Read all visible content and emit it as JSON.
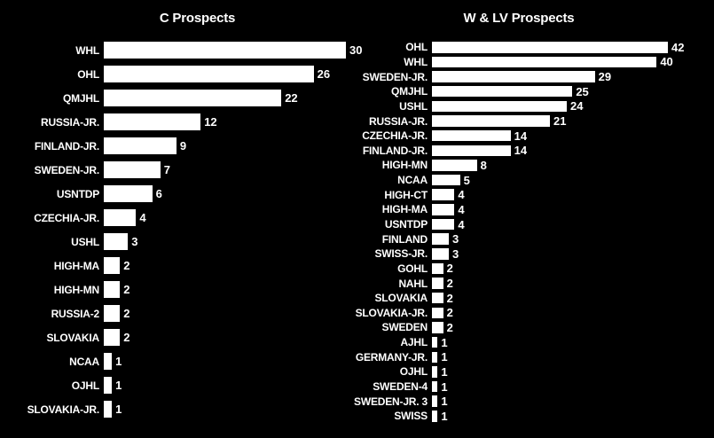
{
  "page": {
    "background_color": "#000000",
    "bar_color": "#ffffff",
    "text_color": "#ffffff"
  },
  "chart_data": [
    {
      "type": "bar",
      "orientation": "horizontal",
      "title": "C Prospects",
      "categories": [
        "WHL",
        "OHL",
        "QMJHL",
        "RUSSIA-JR.",
        "FINLAND-JR.",
        "SWEDEN-JR.",
        "USNTDP",
        "CZECHIA-JR.",
        "USHL",
        "HIGH-MA",
        "HIGH-MN",
        "RUSSIA-2",
        "SLOVAKIA",
        "NCAA",
        "OJHL",
        "SLOVAKIA-JR."
      ],
      "values": [
        30,
        26,
        22,
        12,
        9,
        7,
        6,
        4,
        3,
        2,
        2,
        2,
        2,
        1,
        1,
        1
      ],
      "xlim": [
        0,
        30
      ],
      "value_labels": true,
      "grid": false,
      "legend": false,
      "sort": "descending"
    },
    {
      "type": "bar",
      "orientation": "horizontal",
      "title": "W & LV Prospects",
      "categories": [
        "OHL",
        "WHL",
        "SWEDEN-JR.",
        "QMJHL",
        "USHL",
        "RUSSIA-JR.",
        "CZECHIA-JR.",
        "FINLAND-JR.",
        "HIGH-MN",
        "NCAA",
        "HIGH-CT",
        "HIGH-MA",
        "USNTDP",
        "FINLAND",
        "SWISS-JR.",
        "GOHL",
        "NAHL",
        "SLOVAKIA",
        "SLOVAKIA-JR.",
        "SWEDEN",
        "AJHL",
        "GERMANY-JR.",
        "OJHL",
        "SWEDEN-4",
        "SWEDEN-JR. 3",
        "SWISS"
      ],
      "values": [
        42,
        40,
        29,
        25,
        24,
        21,
        14,
        14,
        8,
        5,
        4,
        4,
        4,
        3,
        3,
        2,
        2,
        2,
        2,
        2,
        1,
        1,
        1,
        1,
        1,
        1
      ],
      "xlim": [
        0,
        42
      ],
      "value_labels": true,
      "grid": false,
      "legend": false,
      "sort": "descending"
    }
  ]
}
